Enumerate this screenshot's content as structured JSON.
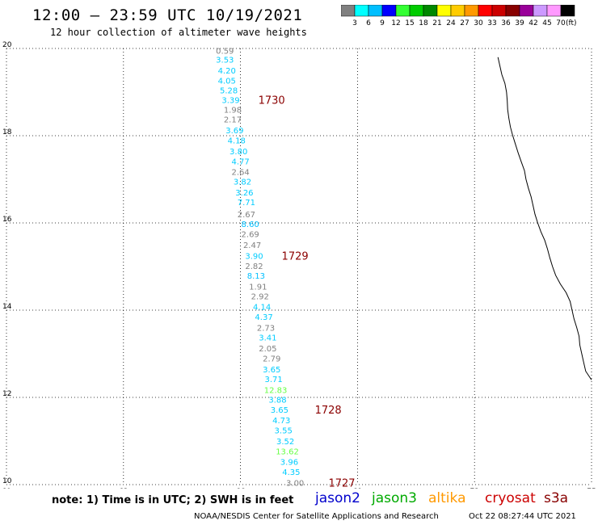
{
  "header": {
    "title": "12:00 – 23:59 UTC 10/19/2021",
    "subtitle": "12 hour collection of altimeter wave heights"
  },
  "colorbar": {
    "colors": [
      "#808080",
      "#00ffff",
      "#00bfff",
      "#0000ff",
      "#33ff33",
      "#00cc00",
      "#008800",
      "#ffff00",
      "#ffcc00",
      "#ff9900",
      "#ff0000",
      "#cc0000",
      "#880000",
      "#990099",
      "#cc99ff",
      "#ff99ff",
      "#000000"
    ],
    "labels": [
      "3",
      "6",
      "9",
      "12",
      "15",
      "18",
      "21",
      "24",
      "27",
      "30",
      "33",
      "36",
      "39",
      "42",
      "45",
      "70"
    ],
    "unit": "(ft)"
  },
  "chart_data": {
    "type": "scatter",
    "xlim": [
      60,
      75
    ],
    "ylim": [
      10,
      20
    ],
    "x_ticks": [
      "60",
      "63",
      "66",
      "69",
      "72",
      "75"
    ],
    "y_ticks": [
      "10",
      "12",
      "14",
      "16",
      "18",
      "20"
    ],
    "grid": true,
    "points": [
      {
        "x": 65.6,
        "y": 19.95,
        "label": "0.59",
        "color": "#808080"
      },
      {
        "x": 65.6,
        "y": 19.75,
        "label": "3.53",
        "color": "#00ccff"
      },
      {
        "x": 65.65,
        "y": 19.5,
        "label": "4.20",
        "color": "#00ccff"
      },
      {
        "x": 65.65,
        "y": 19.27,
        "label": "4.05",
        "color": "#00ccff"
      },
      {
        "x": 65.7,
        "y": 19.05,
        "label": "5.28",
        "color": "#00ccff"
      },
      {
        "x": 65.75,
        "y": 18.82,
        "label": "3.39",
        "color": "#00ccff"
      },
      {
        "x": 65.8,
        "y": 18.6,
        "label": "1.98",
        "color": "#808080"
      },
      {
        "x": 65.8,
        "y": 18.38,
        "label": "2.17",
        "color": "#808080"
      },
      {
        "x": 65.85,
        "y": 18.13,
        "label": "3.69",
        "color": "#00ccff"
      },
      {
        "x": 65.9,
        "y": 17.9,
        "label": "4.18",
        "color": "#00ccff"
      },
      {
        "x": 65.95,
        "y": 17.65,
        "label": "3.80",
        "color": "#00ccff"
      },
      {
        "x": 66.0,
        "y": 17.42,
        "label": "4.77",
        "color": "#00ccff"
      },
      {
        "x": 66.0,
        "y": 17.18,
        "label": "2.64",
        "color": "#808080"
      },
      {
        "x": 66.05,
        "y": 16.95,
        "label": "3.82",
        "color": "#00ccff"
      },
      {
        "x": 66.1,
        "y": 16.7,
        "label": "3.26",
        "color": "#00ccff"
      },
      {
        "x": 66.15,
        "y": 16.48,
        "label": "7.71",
        "color": "#00ccff"
      },
      {
        "x": 66.15,
        "y": 16.2,
        "label": "2.67",
        "color": "#808080"
      },
      {
        "x": 66.25,
        "y": 15.98,
        "label": "8.60",
        "color": "#00bfff"
      },
      {
        "x": 66.25,
        "y": 15.75,
        "label": "2.69",
        "color": "#808080"
      },
      {
        "x": 66.3,
        "y": 15.5,
        "label": "2.47",
        "color": "#808080"
      },
      {
        "x": 66.35,
        "y": 15.25,
        "label": "3.90",
        "color": "#00ccff"
      },
      {
        "x": 66.35,
        "y": 15.02,
        "label": "2.82",
        "color": "#808080"
      },
      {
        "x": 66.4,
        "y": 14.8,
        "label": "8.13",
        "color": "#00bfff"
      },
      {
        "x": 66.45,
        "y": 14.55,
        "label": "1.91",
        "color": "#808080"
      },
      {
        "x": 66.5,
        "y": 14.32,
        "label": "2.92",
        "color": "#808080"
      },
      {
        "x": 66.55,
        "y": 14.08,
        "label": "4.14",
        "color": "#00ccff"
      },
      {
        "x": 66.6,
        "y": 13.85,
        "label": "4.37",
        "color": "#00ccff"
      },
      {
        "x": 66.65,
        "y": 13.6,
        "label": "2.73",
        "color": "#808080"
      },
      {
        "x": 66.7,
        "y": 13.38,
        "label": "3.41",
        "color": "#00ccff"
      },
      {
        "x": 66.7,
        "y": 13.13,
        "label": "2.05",
        "color": "#808080"
      },
      {
        "x": 66.8,
        "y": 12.9,
        "label": "2.79",
        "color": "#808080"
      },
      {
        "x": 66.8,
        "y": 12.65,
        "label": "3.65",
        "color": "#00ccff"
      },
      {
        "x": 66.85,
        "y": 12.43,
        "label": "3.71",
        "color": "#00ccff"
      },
      {
        "x": 66.9,
        "y": 12.18,
        "label": "12.83",
        "color": "#66ff44"
      },
      {
        "x": 66.95,
        "y": 11.95,
        "label": "3.88",
        "color": "#00ccff"
      },
      {
        "x": 67.0,
        "y": 11.72,
        "label": "3.65",
        "color": "#00ccff"
      },
      {
        "x": 67.05,
        "y": 11.48,
        "label": "4.73",
        "color": "#00ccff"
      },
      {
        "x": 67.1,
        "y": 11.25,
        "label": "3.55",
        "color": "#00ccff"
      },
      {
        "x": 67.15,
        "y": 11.0,
        "label": "3.52",
        "color": "#00ccff"
      },
      {
        "x": 67.2,
        "y": 10.77,
        "label": "13.62",
        "color": "#66ff44"
      },
      {
        "x": 67.25,
        "y": 10.53,
        "label": "3.96",
        "color": "#00ccff"
      },
      {
        "x": 67.3,
        "y": 10.3,
        "label": "4.35",
        "color": "#00ccff"
      },
      {
        "x": 67.4,
        "y": 10.05,
        "label": "3.00",
        "color": "#808080"
      }
    ],
    "pass_labels": [
      {
        "x": 66.0,
        "y": 18.82,
        "label": "1730"
      },
      {
        "x": 66.6,
        "y": 15.25,
        "label": "1729"
      },
      {
        "x": 67.45,
        "y": 11.72,
        "label": "1728"
      },
      {
        "x": 67.8,
        "y": 10.05,
        "label": "1727"
      }
    ],
    "coastline": [
      [
        72.6,
        19.8
      ],
      [
        72.65,
        19.6
      ],
      [
        72.7,
        19.4
      ],
      [
        72.78,
        19.2
      ],
      [
        72.82,
        19.0
      ],
      [
        72.84,
        18.8
      ],
      [
        72.85,
        18.6
      ],
      [
        72.88,
        18.4
      ],
      [
        72.92,
        18.2
      ],
      [
        72.98,
        18.0
      ],
      [
        73.05,
        17.8
      ],
      [
        73.12,
        17.6
      ],
      [
        73.2,
        17.4
      ],
      [
        73.28,
        17.2
      ],
      [
        73.32,
        17.0
      ],
      [
        73.38,
        16.8
      ],
      [
        73.45,
        16.6
      ],
      [
        73.5,
        16.4
      ],
      [
        73.55,
        16.2
      ],
      [
        73.62,
        16.0
      ],
      [
        73.7,
        15.8
      ],
      [
        73.8,
        15.6
      ],
      [
        73.87,
        15.4
      ],
      [
        73.93,
        15.2
      ],
      [
        74.0,
        15.0
      ],
      [
        74.08,
        14.8
      ],
      [
        74.2,
        14.6
      ],
      [
        74.35,
        14.4
      ],
      [
        74.45,
        14.2
      ],
      [
        74.5,
        14.0
      ],
      [
        74.55,
        13.8
      ],
      [
        74.62,
        13.6
      ],
      [
        74.68,
        13.4
      ],
      [
        74.7,
        13.2
      ],
      [
        74.75,
        13.0
      ],
      [
        74.8,
        12.8
      ],
      [
        74.85,
        12.6
      ],
      [
        75.0,
        12.4
      ]
    ]
  },
  "footer": {
    "note": "note: 1) Time is in UTC; 2) SWH is in feet",
    "missions": [
      {
        "name": "jason2",
        "color": "#0000cc"
      },
      {
        "name": "jason3",
        "color": "#00aa00"
      },
      {
        "name": "altika",
        "color": "#ff9900"
      },
      {
        "name": "cryosat",
        "color": "#cc0000"
      },
      {
        "name": "s3a",
        "color": "#880000"
      }
    ],
    "credit": "NOAA/NESDIS Center for Satellite Applications and Research",
    "timestamp": "Oct 22 08:27:44 UTC 2021"
  }
}
